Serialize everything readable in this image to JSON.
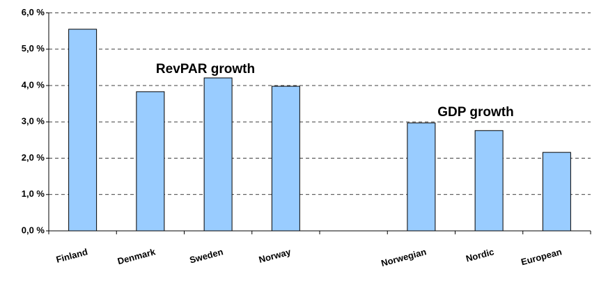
{
  "chart_data": {
    "type": "bar",
    "categories": [
      "Finland",
      "Denmark",
      "Sweden",
      "Norway",
      null,
      "Norwegian",
      "Nordic",
      "European"
    ],
    "values": [
      5.55,
      3.83,
      4.21,
      3.98,
      null,
      2.97,
      2.76,
      2.16
    ],
    "color": "#99ccff",
    "ylim": [
      0,
      6
    ],
    "yticks": [
      {
        "value": 0,
        "label": "0,0 %"
      },
      {
        "value": 1,
        "label": "1,0 %"
      },
      {
        "value": 2,
        "label": "2,0 %"
      },
      {
        "value": 3,
        "label": "3,0 %"
      },
      {
        "value": 4,
        "label": "4,0 %"
      },
      {
        "value": 5,
        "label": "5,0 %"
      },
      {
        "value": 6,
        "label": "6,0 %"
      }
    ],
    "grid": true,
    "annotations": [
      "RevPAR growth",
      "GDP growth"
    ]
  }
}
